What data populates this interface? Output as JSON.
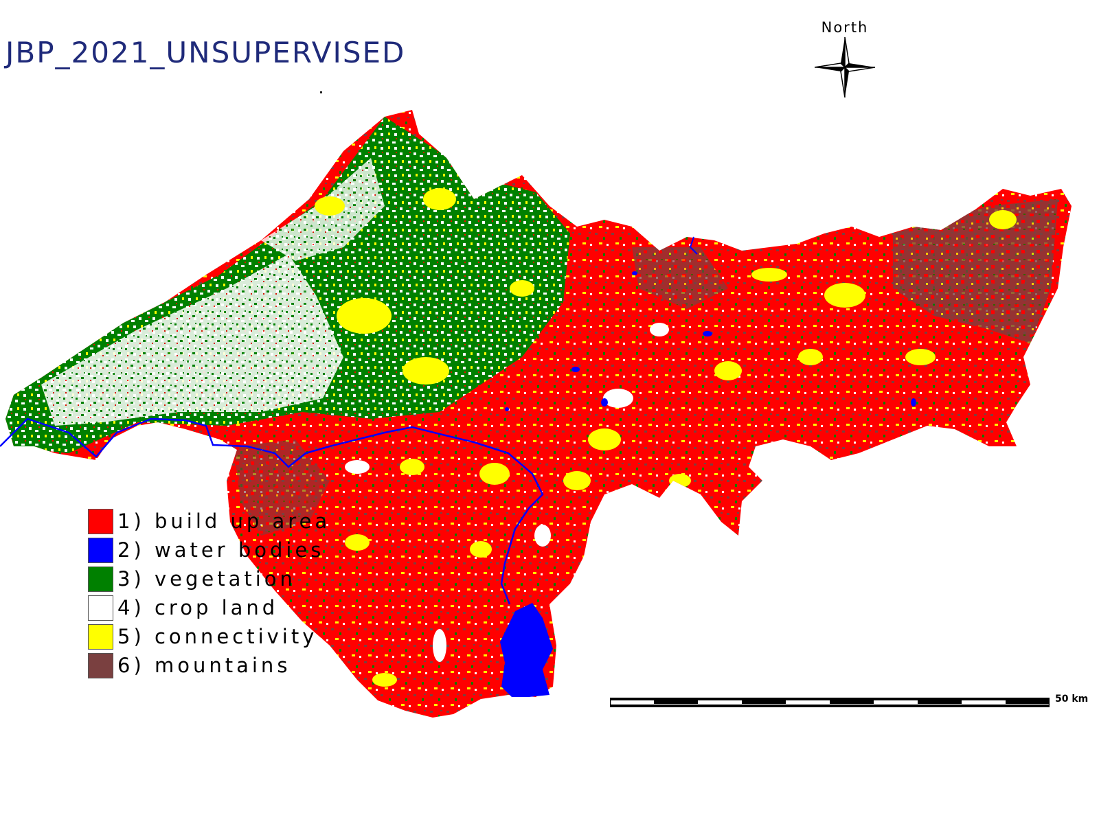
{
  "title": "JBP_2021_UNSUPERVISED",
  "north": {
    "label": "North"
  },
  "legend": {
    "items": [
      {
        "label": "1) build up area",
        "color": "#ff0000"
      },
      {
        "label": "2) water bodies",
        "color": "#0000ff"
      },
      {
        "label": "3) vegetation",
        "color": "#008000"
      },
      {
        "label": "4) crop land",
        "color": "#ffffff"
      },
      {
        "label": "5) connectivity",
        "color": "#ffff00"
      },
      {
        "label": "6) mountains",
        "color": "#7a4040"
      }
    ]
  },
  "scale": {
    "label": "50 km"
  }
}
